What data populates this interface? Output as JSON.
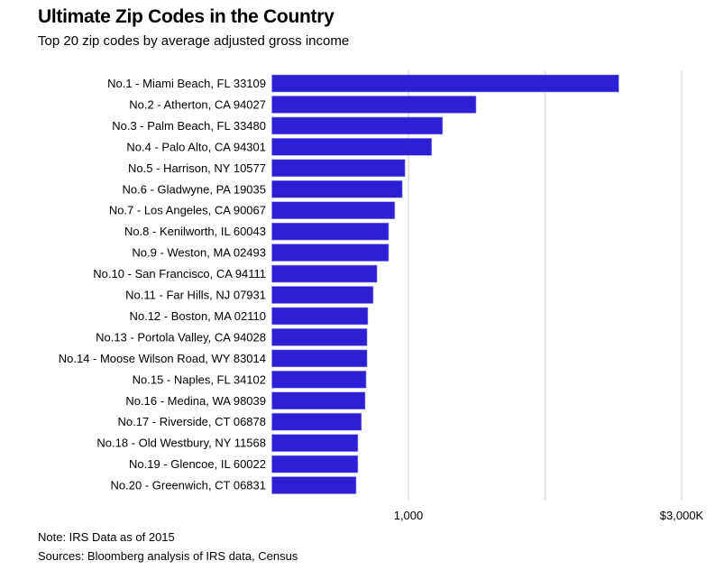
{
  "chart_data": {
    "type": "bar",
    "orientation": "horizontal",
    "title": "Ultimate Zip Codes in the Country",
    "subtitle": "Top 20 zip codes by average adjusted gross income",
    "categories": [
      "No.1 - Miami Beach, FL 33109",
      "No.2 - Atherton, CA 94027",
      "No.3 - Palm Beach, FL 33480",
      "No.4 - Palo Alto, CA 94301",
      "No.5 - Harrison, NY 10577",
      "No.6 - Gladwyne, PA 19035",
      "No.7 - Los Angeles, CA 90067",
      "No.8 - Kenilworth, IL 60043",
      "No.9 - Weston, MA 02493",
      "No.10 - San Francisco, CA 94111",
      "No.11 - Far Hills, NJ 07931",
      "No.12 - Boston, MA 02110",
      "No.13 - Portola Valley, CA 94028",
      "No.14 - Moose Wilson Road, WY 83014",
      "No.15 - Naples, FL 34102",
      "No.16 - Medina, WA 98039",
      "No.17 - Riverside, CT 06878",
      "No.18 - Old Westbury, NY 11568",
      "No.19 - Glencoe, IL 60022",
      "No.20 - Greenwich, CT 06831"
    ],
    "values": [
      2540,
      1495,
      1250,
      1170,
      975,
      955,
      900,
      855,
      855,
      770,
      742,
      703,
      697,
      697,
      690,
      683,
      656,
      630,
      630,
      617
    ],
    "xlim": [
      0,
      3000
    ],
    "gridlines": [
      1000,
      2000,
      3000
    ],
    "tick_labels": [
      {
        "value": 1000,
        "label": "1,000"
      },
      {
        "value": 3000,
        "label": "$3,000K"
      }
    ],
    "grid": true,
    "bar_color": "#2c1fd4",
    "grid_color": "#dddddd"
  },
  "footer": {
    "note": "Note: IRS Data as of 2015",
    "source": "Sources: Bloomberg analysis of IRS data, Census"
  }
}
